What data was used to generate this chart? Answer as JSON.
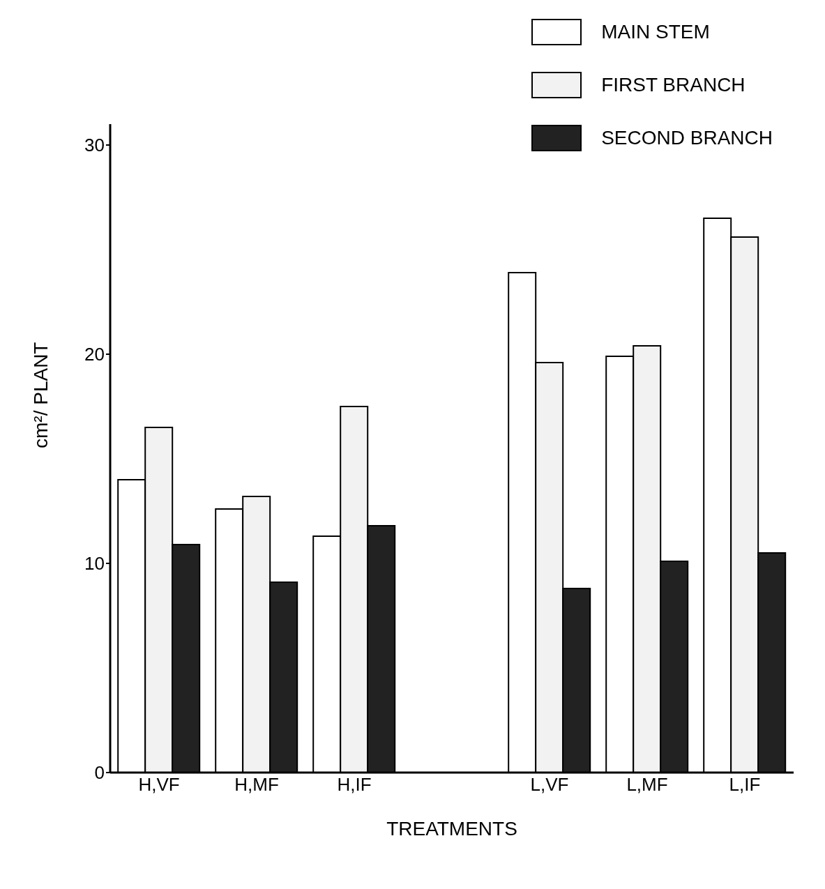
{
  "chart_data": {
    "type": "bar",
    "xlabel": "TREATMENTS",
    "ylabel": "cm²/ PLANT",
    "categories": [
      "H,VF",
      "H,MF",
      "H,IF",
      null,
      "L,VF",
      "L,MF",
      "L,IF"
    ],
    "series": [
      {
        "name": "MAIN STEM",
        "color": "#ffffff",
        "values": [
          14.0,
          12.6,
          11.3,
          null,
          23.9,
          19.9,
          26.5
        ]
      },
      {
        "name": "FIRST BRANCH",
        "color": "#f2f2f2",
        "values": [
          16.5,
          13.2,
          17.5,
          null,
          19.6,
          20.4,
          25.6
        ]
      },
      {
        "name": "SECOND BRANCH",
        "color": "#222222",
        "values": [
          10.9,
          9.1,
          11.8,
          null,
          8.8,
          10.1,
          10.5
        ]
      }
    ],
    "ylim": [
      0,
      31
    ],
    "yticks": [
      0,
      10,
      20,
      30
    ],
    "grid": false,
    "legend": "top right"
  }
}
